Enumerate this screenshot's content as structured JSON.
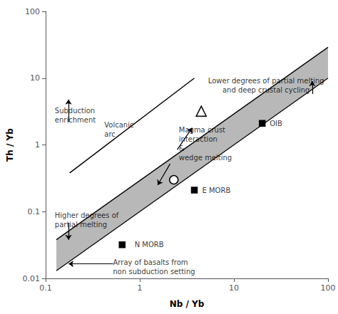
{
  "chart_data": {
    "type": "scatter",
    "log": true,
    "grid": false,
    "xlabel": "Nb / Yb",
    "ylabel": "Th / Yb",
    "xlim": [
      0.1,
      100
    ],
    "ylim": [
      0.01,
      100
    ],
    "xticks": [
      0.1,
      1,
      10,
      100
    ],
    "yticks": [
      0.01,
      0.1,
      1,
      10,
      100
    ],
    "series": [
      {
        "type": "band",
        "color": "#b8b8b8",
        "x": [
          0.13,
          100
        ],
        "lower": [
          0.013,
          10.0
        ],
        "upper": [
          0.038,
          29.0
        ]
      },
      {
        "type": "line",
        "color": "#000000",
        "x": [
          0.18,
          3.8
        ],
        "values": [
          0.38,
          10
        ]
      },
      {
        "type": "scatter",
        "marker": "square",
        "color": "#000000",
        "x": [
          0.65,
          3.8,
          20
        ],
        "values": [
          0.032,
          0.21,
          2.1
        ]
      },
      {
        "type": "scatter",
        "marker": "triangle",
        "color": "#ffffff",
        "x": [
          4.5
        ],
        "values": [
          3.2
        ]
      },
      {
        "type": "scatter",
        "marker": "circle",
        "color": "#ffffff",
        "x": [
          2.3
        ],
        "values": [
          0.3
        ]
      }
    ],
    "annotations": [
      {
        "text": "Subduction\nenrichment",
        "x": 0.125,
        "y": 2.8
      },
      {
        "text": "Volcanic\narc",
        "x": 0.42,
        "y": 1.7
      },
      {
        "text": "Lower degrees of partial melting\nand deep crustal cycling",
        "x": 22,
        "y": 7.8
      },
      {
        "text": "Magma crust\ninteraction\n&\nwedge melting",
        "x": 2.6,
        "y": 1.05
      },
      {
        "text": "Higher degrees of\npartial melting",
        "x": 0.125,
        "y": 0.075
      },
      {
        "text": "N MORB",
        "x": 0.88,
        "y": 0.032
      },
      {
        "text": "E MORB",
        "x": 4.6,
        "y": 0.21
      },
      {
        "text": "OIB",
        "x": 24,
        "y": 2.1
      },
      {
        "text": "Array of basalts from\nnon subduction setting",
        "x": 0.52,
        "y": 0.0148
      }
    ],
    "arrows": [
      {
        "from": [
          0.175,
          2.2
        ],
        "to": [
          0.175,
          4.8
        ]
      },
      {
        "from": [
          0.175,
          0.068
        ],
        "to": [
          0.175,
          0.038
        ]
      },
      {
        "from": [
          68,
          5.8
        ],
        "to": [
          68,
          9.0
        ]
      },
      {
        "from": [
          2.5,
          0.85
        ],
        "to": [
          3.6,
          1.8
        ]
      },
      {
        "from": [
          2.1,
          0.52
        ],
        "to": [
          1.55,
          0.25
        ]
      },
      {
        "from": [
          0.52,
          0.0165
        ],
        "to": [
          0.175,
          0.0165
        ]
      }
    ]
  }
}
